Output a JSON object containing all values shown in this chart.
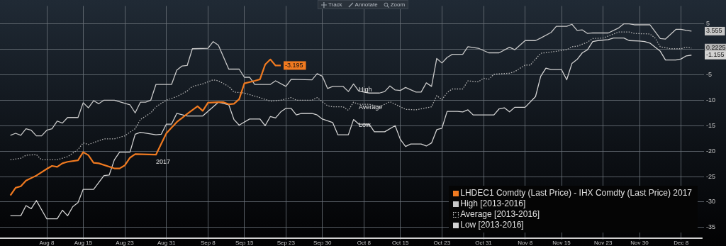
{
  "chart_data": {
    "type": "line",
    "xlim": [
      "--07-30",
      "--12-12"
    ],
    "xticks": [
      {
        "value": "--08-08",
        "label": "Aug 8"
      },
      {
        "value": "--08-15",
        "label": "Aug 15"
      },
      {
        "value": "--08-23",
        "label": "Aug 23"
      },
      {
        "value": "--08-31",
        "label": "Aug 31"
      },
      {
        "value": "--09-08",
        "label": "Sep 8"
      },
      {
        "value": "--09-15",
        "label": "Sep 15"
      },
      {
        "value": "--09-23",
        "label": "Sep 23"
      },
      {
        "value": "--09-30",
        "label": "Sep 30"
      },
      {
        "value": "--10-08",
        "label": "Oct 8"
      },
      {
        "value": "--10-15",
        "label": "Oct 15"
      },
      {
        "value": "--10-23",
        "label": "Oct 23"
      },
      {
        "value": "--10-31",
        "label": "Oct 31"
      },
      {
        "value": "--11-08",
        "label": "Nov 8"
      },
      {
        "value": "--11-15",
        "label": "Nov 15"
      },
      {
        "value": "--11-23",
        "label": "Nov 23"
      },
      {
        "value": "--11-30",
        "label": "Nov 30"
      },
      {
        "value": "--12-08",
        "label": "Dec 8"
      }
    ],
    "ylim": [
      -37.1,
      8.5
    ],
    "yticks": [
      -35,
      -30,
      -25,
      -20,
      -15,
      -10,
      -5,
      {
        "value": 0,
        "label": null
      },
      5
    ],
    "grid": true,
    "legend": "bottom right",
    "marker": "none",
    "series": [
      {
        "name": "LHDEC1 Comdty (Last Price) - IHX Comdty (Last Price) 2017",
        "color": "#f07a20",
        "line_style": "solid",
        "x": [
          "--08-01",
          "--08-02",
          "--08-03",
          "--08-04",
          "--08-06",
          "--08-08",
          "--08-09",
          "--08-10",
          "--08-11",
          "--08-12",
          "--08-14",
          "--08-15",
          "--08-16",
          "--08-17",
          "--08-18",
          "--08-21",
          "--08-22",
          "--08-23",
          "--08-24",
          "--08-25",
          "--08-29",
          "--08-30",
          "--08-31",
          "--09-01",
          "--09-02",
          "--09-04",
          "--09-06",
          "--09-07",
          "--09-08",
          "--09-10",
          "--09-11",
          "--09-12",
          "--09-13",
          "--09-14",
          "--09-15",
          "--09-17",
          "--09-18",
          "--09-19",
          "--09-20",
          "--09-21",
          "--09-22"
        ],
        "values": [
          -28.7,
          -27.2,
          -26.9,
          -25.8,
          -24.8,
          -23.5,
          -22.9,
          -23.1,
          -22.4,
          -22.1,
          -21.8,
          -20.2,
          -20.8,
          -22.3,
          -22.4,
          -23.4,
          -23.4,
          -22.8,
          -21.3,
          -20.6,
          -20.7,
          -18.6,
          -16.5,
          -15.4,
          -14.3,
          -12.7,
          -11.2,
          -12.1,
          -10.5,
          -10.4,
          -10.4,
          -10.8,
          -10.7,
          -9.8,
          -6.7,
          -6.2,
          -5.9,
          -3.0,
          -2.0,
          -3.2,
          -3.195
        ],
        "value_labels": [
          null,
          null,
          null,
          null,
          null,
          null,
          null,
          null,
          null,
          null,
          null,
          null,
          null,
          null,
          null,
          null,
          null,
          null,
          null,
          null,
          null,
          null,
          null,
          null,
          null,
          null,
          null,
          null,
          null,
          null,
          null,
          null,
          null,
          null,
          null,
          null,
          null,
          null,
          null,
          null,
          "-3.195"
        ]
      },
      {
        "name": "High [2013-2016]",
        "color": "#c8c8c8",
        "line_style": "solid",
        "x": [
          "--08-01",
          "--08-02",
          "--08-03",
          "--08-04",
          "--08-05",
          "--08-06",
          "--08-07",
          "--08-08",
          "--08-09",
          "--08-10",
          "--08-11",
          "--08-12",
          "--08-14",
          "--08-15",
          "--08-16",
          "--08-17",
          "--08-18",
          "--08-19",
          "--08-21",
          "--08-24",
          "--08-25",
          "--08-26",
          "--08-27",
          "--08-28",
          "--08-29",
          "--09-01",
          "--09-02",
          "--09-03",
          "--09-04",
          "--09-05",
          "--09-08",
          "--09-09",
          "--09-10",
          "--09-12",
          "--09-14",
          "--09-15",
          "--09-16",
          "--09-17",
          "--09-20",
          "--09-21",
          "--09-23",
          "--09-24",
          "--09-28",
          "--09-29",
          "--09-30",
          "--10-01",
          "--10-02",
          "--10-04",
          "--10-05",
          "--10-06",
          "--10-07",
          "--10-09",
          "--10-11",
          "--10-12",
          "--10-13",
          "--10-14",
          "--10-15",
          "--10-16",
          "--10-18",
          "--10-19",
          "--10-20",
          "--10-21",
          "--10-22",
          "--10-23",
          "--10-24",
          "--10-25",
          "--10-27",
          "--10-28",
          "--10-30",
          "--11-01",
          "--11-03",
          "--11-05",
          "--11-06",
          "--11-08",
          "--11-10",
          "--11-11",
          "--11-13",
          "--11-14",
          "--11-16",
          "--11-17",
          "--11-18",
          "--11-19",
          "--11-20",
          "--11-21",
          "--11-24",
          "--11-26",
          "--11-27",
          "--11-28",
          "--11-29",
          "--12-02",
          "--12-04",
          "--12-05",
          "--12-07",
          "--12-08",
          "--12-09",
          "--12-10"
        ],
        "values": [
          -16.9,
          -16.5,
          -16.9,
          -15.6,
          -15.9,
          -17.0,
          -17.0,
          -15.9,
          -15.6,
          -14.1,
          -14.5,
          -13.4,
          -13.4,
          -10.5,
          -11.5,
          -10.1,
          -10.7,
          -10.0,
          -10.0,
          -10.9,
          -12.5,
          -10.4,
          -10.4,
          -10.0,
          -6.9,
          -6.9,
          -4.1,
          -3.3,
          -3.2,
          0.1,
          0.2,
          1.5,
          0.8,
          -3.9,
          -3.9,
          -5.5,
          -5.5,
          -6.9,
          -6.9,
          -6.2,
          -7.3,
          -5.9,
          -6.0,
          -4.8,
          -5.3,
          -7.7,
          -7.3,
          -7.3,
          -8.3,
          -6.8,
          -8.2,
          -8.6,
          -8.6,
          -8.3,
          -7.2,
          -8.0,
          -8.1,
          -7.5,
          -8.4,
          -8.4,
          -6.6,
          -7.3,
          -1.8,
          -2.7,
          -1.6,
          -1.0,
          -1.0,
          0.5,
          0.2,
          -0.7,
          -0.7,
          0.4,
          -0.1,
          1.7,
          1.7,
          2.2,
          3.3,
          4.5,
          4.5,
          4.9,
          3.7,
          3.8,
          3.1,
          3.2,
          3.2,
          4.2,
          5.0,
          5.0,
          4.8,
          4.8,
          2.1,
          2.0,
          3.9,
          3.9,
          3.7,
          3.555
        ]
      },
      {
        "name": "Average [2013-2016]",
        "color": "#b4b4b4",
        "line_style": "dotted",
        "x": [
          "--08-01",
          "--08-03",
          "--08-04",
          "--08-06",
          "--08-07",
          "--08-10",
          "--08-12",
          "--08-14",
          "--08-15",
          "--08-16",
          "--08-19",
          "--08-21",
          "--08-23",
          "--08-25",
          "--08-26",
          "--08-28",
          "--08-29",
          "--08-31",
          "--09-02",
          "--09-04",
          "--09-05",
          "--09-07",
          "--09-09",
          "--09-10",
          "--09-12",
          "--09-13",
          "--09-15",
          "--09-18",
          "--09-20",
          "--09-22",
          "--09-24",
          "--09-25",
          "--09-28",
          "--09-29",
          "--10-01",
          "--10-02",
          "--10-04",
          "--10-05",
          "--10-06",
          "--10-07",
          "--10-09",
          "--10-11",
          "--10-13",
          "--10-16",
          "--10-18",
          "--10-20",
          "--10-21",
          "--10-22",
          "--10-23",
          "--10-24",
          "--10-25",
          "--10-27",
          "--10-28",
          "--10-30",
          "--10-31",
          "--11-01",
          "--11-02",
          "--11-05",
          "--11-06",
          "--11-08",
          "--11-09",
          "--11-11",
          "--11-14",
          "--11-16",
          "--11-17",
          "--11-18",
          "--11-20",
          "--11-21",
          "--11-23",
          "--11-25",
          "--11-26",
          "--11-28",
          "--11-29",
          "--12-02",
          "--12-03",
          "--12-04",
          "--12-06",
          "--12-08",
          "--12-09",
          "--12-10"
        ],
        "values": [
          -21.7,
          -21.4,
          -20.8,
          -20.7,
          -21.7,
          -21.7,
          -21.1,
          -19.7,
          -18.4,
          -18.7,
          -17.6,
          -17.6,
          -17.0,
          -15.6,
          -13.8,
          -12.5,
          -11.3,
          -10.0,
          -9.3,
          -8.2,
          -7.3,
          -6.8,
          -6.0,
          -6.2,
          -7.3,
          -8.4,
          -8.6,
          -9.5,
          -10.2,
          -10.0,
          -9.5,
          -10.0,
          -10.0,
          -9.5,
          -11.1,
          -11.3,
          -11.3,
          -12.0,
          -10.4,
          -10.8,
          -10.8,
          -11.3,
          -10.3,
          -11.8,
          -11.9,
          -11.5,
          -11.3,
          -9.1,
          -9.9,
          -8.5,
          -7.8,
          -7.8,
          -6.2,
          -6.4,
          -5.7,
          -5.9,
          -4.9,
          -4.7,
          -4.4,
          -3.1,
          -3.1,
          -0.8,
          -0.4,
          -0.1,
          0.5,
          0.6,
          1.4,
          2.1,
          2.2,
          3.0,
          3.4,
          3.4,
          3.1,
          3.0,
          2.2,
          0.5,
          0.1,
          0.1,
          0.4,
          0.2225
        ]
      },
      {
        "name": "Low [2013-2016]",
        "color": "#d2d2d2",
        "line_style": "solid",
        "x": [
          "--08-01",
          "--08-03",
          "--08-04",
          "--08-05",
          "--08-06",
          "--08-08",
          "--08-10",
          "--08-11",
          "--08-12",
          "--08-13",
          "--08-14",
          "--08-15",
          "--08-17",
          "--08-19",
          "--08-20",
          "--08-21",
          "--08-22",
          "--08-24",
          "--08-25",
          "--08-26",
          "--08-29",
          "--08-30",
          "--08-31",
          "--09-01",
          "--09-02",
          "--09-04",
          "--09-07",
          "--09-10",
          "--09-12",
          "--09-13",
          "--09-14",
          "--09-16",
          "--09-18",
          "--09-19",
          "--09-20",
          "--09-21",
          "--09-22",
          "--09-23",
          "--09-24",
          "--09-25",
          "--09-26",
          "--09-28",
          "--09-29",
          "--09-30",
          "--10-02",
          "--10-03",
          "--10-05",
          "--10-06",
          "--10-07",
          "--10-09",
          "--10-10",
          "--10-12",
          "--10-14",
          "--10-15",
          "--10-16",
          "--10-17",
          "--10-19",
          "--10-20",
          "--10-21",
          "--10-22",
          "--10-23",
          "--10-24",
          "--10-26",
          "--10-27",
          "--10-28",
          "--10-29",
          "--10-31",
          "--11-02",
          "--11-03",
          "--11-04",
          "--11-05",
          "--11-06",
          "--11-08",
          "--11-10",
          "--11-11",
          "--11-12",
          "--11-13",
          "--11-15",
          "--11-16",
          "--11-17",
          "--11-18",
          "--11-19",
          "--11-20",
          "--11-21",
          "--11-22",
          "--11-24",
          "--11-25",
          "--11-27",
          "--11-28",
          "--11-30",
          "--12-01",
          "--12-02",
          "--12-04",
          "--12-05",
          "--12-07",
          "--12-08",
          "--12-09",
          "--12-10"
        ],
        "values": [
          -32.7,
          -32.7,
          -30.7,
          -31.3,
          -29.7,
          -33.3,
          -33.3,
          -31.6,
          -32.7,
          -30.9,
          -30.1,
          -27.5,
          -27.5,
          -24.8,
          -24.7,
          -21.7,
          -20.2,
          -20.2,
          -16.7,
          -16.3,
          -16.8,
          -16.7,
          -14.7,
          -14.7,
          -12.6,
          -13.1,
          -13.1,
          -10.4,
          -10.9,
          -13.8,
          -14.9,
          -13.7,
          -13.7,
          -15.0,
          -13.2,
          -13.5,
          -12.3,
          -11.6,
          -11.6,
          -12.9,
          -12.6,
          -12.6,
          -12.9,
          -13.7,
          -14.4,
          -16.8,
          -16.8,
          -13.8,
          -14.7,
          -14.7,
          -16.2,
          -16.2,
          -15.0,
          -17.7,
          -19.1,
          -18.6,
          -18.6,
          -19.0,
          -18.4,
          -15.8,
          -15.5,
          -12.2,
          -12.2,
          -12.3,
          -11.9,
          -12.9,
          -12.9,
          -12.9,
          -11.7,
          -11.5,
          -12.3,
          -11.4,
          -11.4,
          -9.3,
          -5.3,
          -3.7,
          -4.0,
          -4.0,
          -6.0,
          -2.8,
          -2.0,
          -0.7,
          -0.1,
          1.5,
          1.7,
          1.9,
          2.2,
          2.2,
          1.7,
          1.6,
          1.5,
          1.2,
          -0.4,
          -2.1,
          -2.1,
          -1.9,
          -1.3,
          -1.155
        ]
      }
    ],
    "annotations": [
      "Track",
      "Annotate",
      "Zoom",
      {
        "text": "High",
        "x": "--10-07",
        "y": -7.9
      },
      {
        "text": "Average",
        "x": "--10-07",
        "y": -11.4
      },
      {
        "text": "Low",
        "x": "--10-07",
        "y": -14.9
      },
      {
        "text": "2017",
        "x": "--08-29",
        "y": -20.7
      },
      {
        "text": "3.555",
        "x": "--12-10",
        "y": 3.555
      },
      {
        "text": "0.2225",
        "x": "--12-10",
        "y": 0.2225
      },
      {
        "text": "-1.155",
        "x": "--12-10",
        "y": -1.155
      }
    ]
  }
}
